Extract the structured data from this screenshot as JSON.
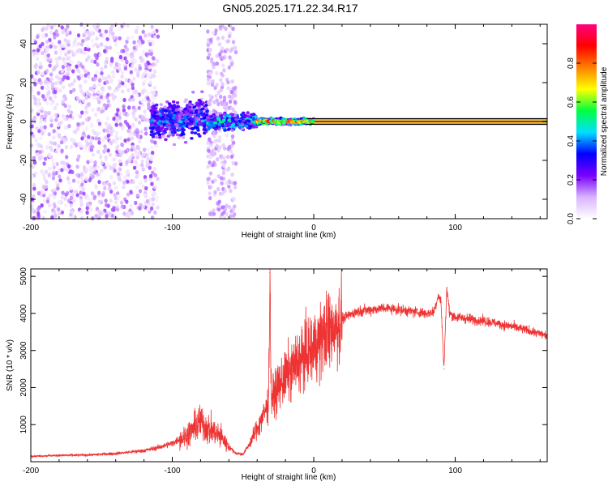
{
  "title": "GN05.2025.171.22.34.R17",
  "colorbar": {
    "label": "Normalized spectral amplitude",
    "ticks": [
      "0.0",
      "0.2",
      "0.4",
      "0.6",
      "0.8"
    ],
    "tick_values": [
      0.0,
      0.2,
      0.4,
      0.6,
      0.8
    ],
    "range": [
      0,
      1
    ],
    "colors": [
      "#ffffff",
      "#d9b3ff",
      "#7a00ff",
      "#0000ff",
      "#00e0ff",
      "#00ff40",
      "#ffff00",
      "#ff8000",
      "#ff0000",
      "#ff0080"
    ]
  },
  "chart_data": [
    {
      "type": "heatmap",
      "xlabel": "Height of straight line (km)",
      "ylabel": "Frequency (Hz)",
      "xlim": [
        -200,
        165
      ],
      "ylim": [
        -50,
        50
      ],
      "xticks": [
        -200,
        -100,
        0,
        100
      ],
      "yticks": [
        -40,
        -20,
        0,
        20,
        40
      ],
      "regions": [
        {
          "x": [
            -200,
            -110
          ],
          "freq_spread": 50,
          "amplitude": 0.15,
          "pattern": "broadband speckle"
        },
        {
          "x": [
            -115,
            -75
          ],
          "freq_spread": 12,
          "amplitude": 0.35,
          "pattern": "tightening cluster"
        },
        {
          "x": [
            -75,
            -55
          ],
          "freq_spread": 50,
          "amplitude": 0.12,
          "pattern": "vertical speckle band"
        },
        {
          "x": [
            -75,
            -40
          ],
          "freq_spread": 5,
          "amplitude": 0.45,
          "pattern": "narrowing cluster"
        },
        {
          "x": [
            -40,
            0
          ],
          "freq_spread": 2,
          "amplitude": 0.6,
          "pattern": "converging line"
        },
        {
          "x": [
            0,
            165
          ],
          "freq_spread": 1,
          "amplitude": 0.95,
          "pattern": "narrow line at 0 Hz"
        }
      ],
      "line_frequency": 0
    },
    {
      "type": "line",
      "xlabel": "Height of straight line (km)",
      "ylabel": "SNR (10 * v/v)",
      "xlim": [
        -200,
        165
      ],
      "ylim": [
        0,
        5200
      ],
      "xticks": [
        -200,
        -100,
        0,
        100
      ],
      "yticks": [
        1000,
        2000,
        3000,
        4000,
        5000
      ],
      "color": "#ee3333",
      "series": [
        {
          "x": [
            -200,
            -180,
            -160,
            -140,
            -120,
            -110,
            -100,
            -90,
            -85,
            -80,
            -75,
            -70,
            -65,
            -60,
            -55,
            -50,
            -45,
            -40,
            -35,
            -32,
            -31,
            -30,
            -25,
            -20,
            -15,
            -10,
            -5,
            0,
            5,
            10,
            15,
            20,
            25,
            30,
            40,
            50,
            60,
            70,
            80,
            85,
            88,
            90,
            92,
            94,
            96,
            100,
            120,
            140,
            165
          ],
          "y": [
            150,
            170,
            180,
            220,
            300,
            380,
            500,
            700,
            900,
            1100,
            900,
            800,
            650,
            400,
            230,
            200,
            500,
            900,
            1300,
            1600,
            5100,
            1700,
            2000,
            2300,
            2500,
            2750,
            2900,
            3100,
            3300,
            3500,
            3700,
            3850,
            3950,
            4050,
            4100,
            4150,
            4100,
            4050,
            4000,
            4050,
            4500,
            4300,
            2500,
            4700,
            4000,
            3900,
            3800,
            3650,
            3400
          ]
        }
      ]
    }
  ]
}
